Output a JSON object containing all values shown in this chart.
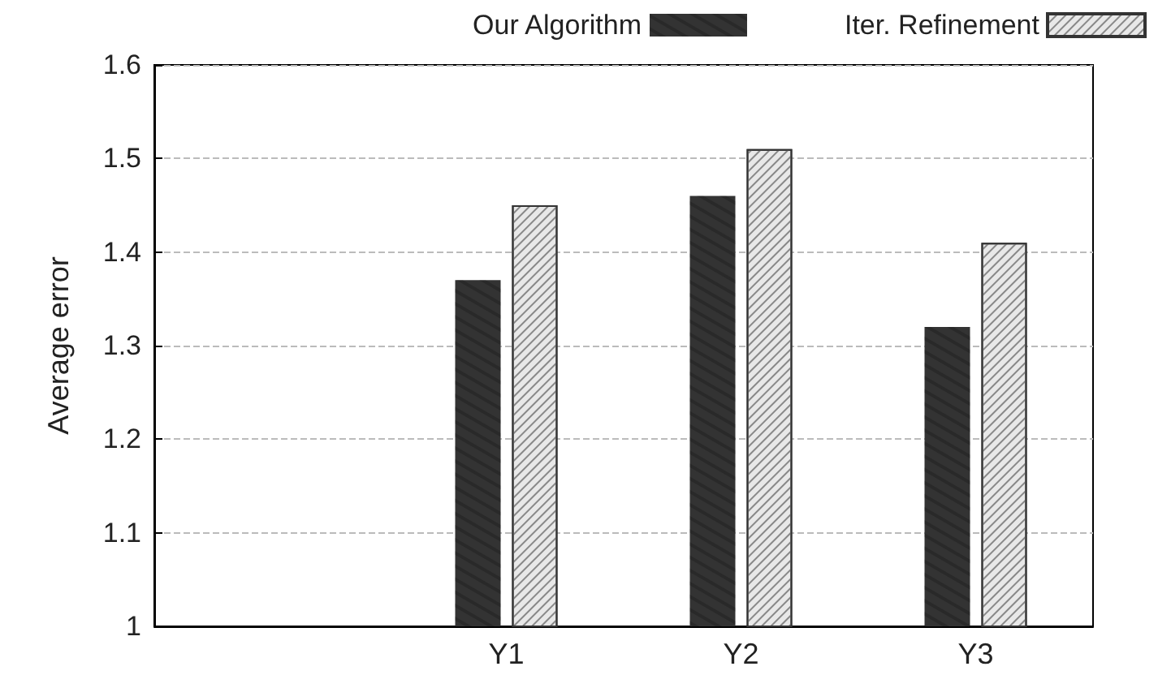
{
  "chart_data": {
    "type": "bar",
    "ylabel": "Average error",
    "categories": [
      null,
      "Y1",
      "Y2",
      "Y3"
    ],
    "series": [
      {
        "name": "Our Algorithm",
        "color": "#333333",
        "values": [
          null,
          1.37,
          1.46,
          1.32
        ]
      },
      {
        "name": "Iter. Refinement",
        "color": "#e8e8e8",
        "values": [
          null,
          1.45,
          1.51,
          1.41
        ]
      }
    ],
    "ylim": [
      1,
      1.6
    ],
    "yticks": [
      1,
      1.1,
      1.2,
      1.3,
      1.4,
      1.5,
      1.6
    ],
    "grid": "y",
    "legend": "top right"
  }
}
